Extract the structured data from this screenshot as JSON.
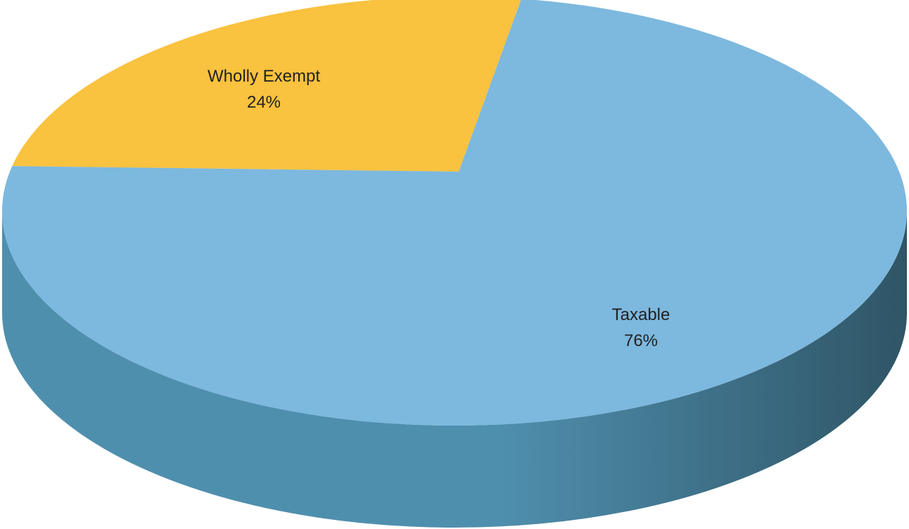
{
  "chart_data": {
    "type": "pie",
    "style": "3d",
    "slices": [
      {
        "label": "Wholly Exempt",
        "value": 24,
        "value_label": "24%",
        "color": "#F9C23F"
      },
      {
        "label": "Taxable",
        "value": 76,
        "value_label": "76%",
        "color": "#7DB8DE"
      }
    ],
    "side_color": "#4F8FAE",
    "side_shadow_color": "#2F5566",
    "legend": "none"
  }
}
